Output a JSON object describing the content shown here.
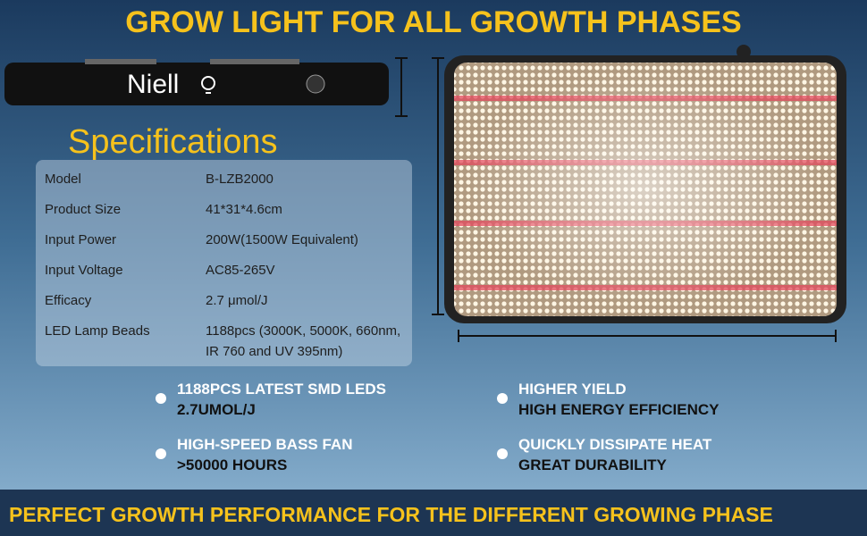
{
  "header": {
    "title": "GROW LIGHT FOR ALL GROWTH PHASES"
  },
  "brand": "Niell",
  "specifications": {
    "title": "Specifications",
    "rows": [
      [
        "Model",
        "B-LZB2000"
      ],
      [
        "Product Size",
        "41*31*4.6cm"
      ],
      [
        "Input Power",
        "200W(1500W Equivalent)"
      ],
      [
        "Input Voltage",
        "AC85-265V"
      ],
      [
        "Efficacy",
        "2.7 μmol/J"
      ],
      [
        "LED Lamp Beads",
        "1188pcs (3000K, 5000K, 660nm, IR 760 and UV 395nm)"
      ]
    ]
  },
  "features": [
    [
      "1188PCS LATEST SMD LEDS",
      "2.7UMOL/J"
    ],
    [
      "HIGH-SPEED BASS FAN",
      ">50000 HOURS"
    ],
    [
      "HIGHER YIELD",
      "HIGH ENERGY EFFICIENCY"
    ],
    [
      "QUICKLY DISSIPATE HEAT",
      "GREAT DURABILITY"
    ]
  ],
  "footer": "PERFECT GROWTH PERFORMANCE FOR THE DIFFERENT GROWING PHASE"
}
